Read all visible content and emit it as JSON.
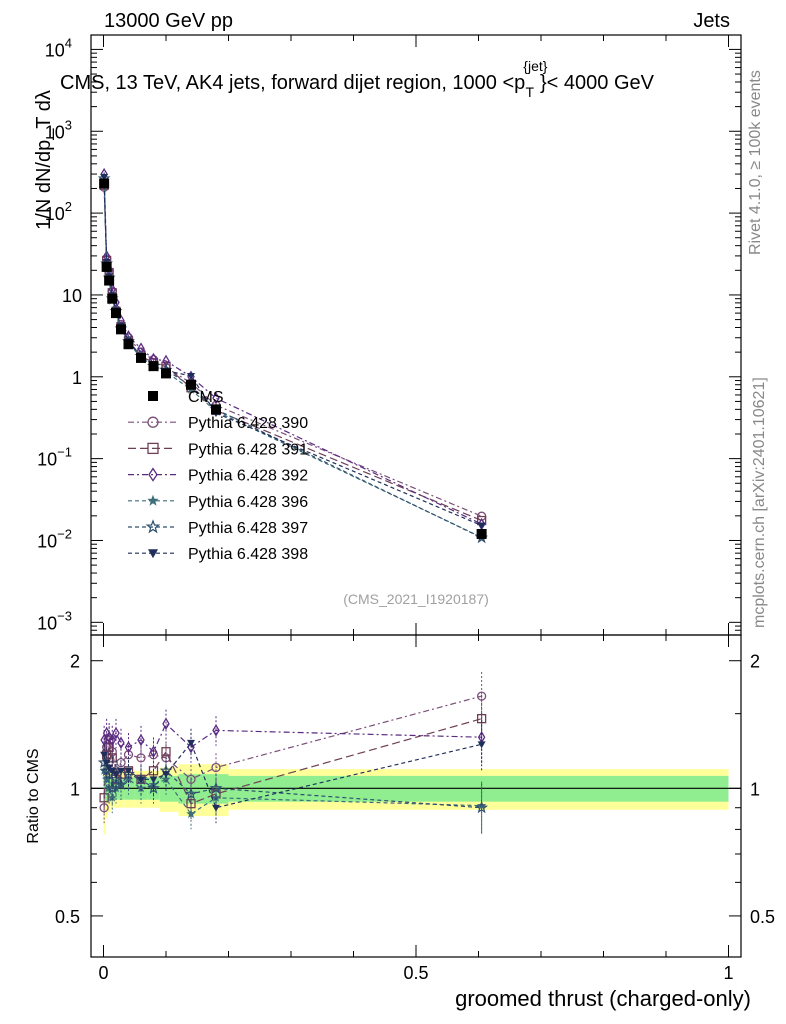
{
  "header": {
    "left": "13000 GeV pp",
    "right": "Jets"
  },
  "title_parts": {
    "main": "CMS, 13 TeV, AK4 jets, forward dijet region, 1000 <p",
    "sup": "{jet}",
    "sub": "T",
    "tail": "}< 4000 GeV"
  },
  "ylabel_upper": "1/N dN/dp_T dλ",
  "ylabel_lower": "Ratio to CMS",
  "xlabel": "groomed thrust (charged-only)",
  "watermark": "(CMS_2021_I1920187)",
  "side_text": {
    "rivet": "Rivet 4.1.0, ≥ 100k events",
    "mcplots": "mcplots.cern.ch [arXiv:2401.10621]"
  },
  "upper_ticks": [
    {
      "v": 0.001,
      "mant": "10",
      "exp": "−3"
    },
    {
      "v": 0.01,
      "mant": "10",
      "exp": "−2"
    },
    {
      "v": 0.1,
      "mant": "10",
      "exp": "−1"
    },
    {
      "v": 1,
      "mant": "1",
      "exp": ""
    },
    {
      "v": 10,
      "mant": "10",
      "exp": ""
    },
    {
      "v": 100,
      "mant": "10",
      "exp": "2"
    },
    {
      "v": 1000,
      "mant": "10",
      "exp": "3"
    },
    {
      "v": 10000,
      "mant": "10",
      "exp": "4"
    }
  ],
  "ratio_ticks": [
    "0.5",
    "1",
    "2"
  ],
  "x_ticks": [
    "0",
    "0.5",
    "1"
  ],
  "legend": [
    {
      "label": "CMS",
      "color": "#000000",
      "marker": "square-filled"
    },
    {
      "label": "Pythia 6.428 390",
      "color": "#7b4f7a",
      "marker": "circle-open"
    },
    {
      "label": "Pythia 6.428 391",
      "color": "#6e3f55",
      "marker": "square-open"
    },
    {
      "label": "Pythia 6.428 392",
      "color": "#5a2b82",
      "marker": "diamond-open"
    },
    {
      "label": "Pythia 6.428 396",
      "color": "#3d6e7a",
      "marker": "star-filled"
    },
    {
      "label": "Pythia 6.428 397",
      "color": "#2f4f6e",
      "marker": "star-open"
    },
    {
      "label": "Pythia 6.428 398",
      "color": "#1f2f5a",
      "marker": "triangle-down-filled"
    }
  ],
  "chart_data": {
    "type": "scatter",
    "title": "CMS, 13 TeV, AK4 jets, forward dijet region, 1000 < p_T^{jet} < 4000 GeV",
    "xlabel": "groomed thrust (charged-only)",
    "ylabel": "1/N dN/dp_T dλ",
    "xlim": [
      -0.02,
      1.02
    ],
    "ylim": [
      0.0007,
      15000
    ],
    "yscale": "log",
    "ratio_ylim": [
      0.4,
      2.3
    ],
    "x": [
      0.001,
      0.005,
      0.009,
      0.014,
      0.02,
      0.028,
      0.04,
      0.06,
      0.08,
      0.1,
      0.14,
      0.18,
      0.605
    ],
    "reference": {
      "name": "CMS",
      "values": [
        230,
        22,
        15,
        9,
        6,
        3.8,
        2.5,
        1.7,
        1.35,
        1.1,
        0.8,
        0.4,
        0.012
      ],
      "band_inner": [
        0.07,
        0.07,
        0.07,
        0.06,
        0.06,
        0.06,
        0.06,
        0.06,
        0.06,
        0.07,
        0.08,
        0.08,
        0.07
      ],
      "band_outer": [
        0.22,
        0.15,
        0.12,
        0.1,
        0.1,
        0.1,
        0.1,
        0.1,
        0.1,
        0.12,
        0.14,
        0.14,
        0.11
      ]
    },
    "series": [
      {
        "name": "Pythia 6.428 390",
        "ratio": [
          0.9,
          1.25,
          1.3,
          1.22,
          1.1,
          1.15,
          1.2,
          1.18,
          1.2,
          1.18,
          1.05,
          1.12,
          1.65
        ]
      },
      {
        "name": "Pythia 6.428 391",
        "ratio": [
          0.95,
          1.2,
          1.25,
          1.18,
          1.05,
          1.08,
          1.1,
          1.05,
          1.1,
          1.22,
          0.92,
          0.97,
          1.46
        ]
      },
      {
        "name": "Pythia 6.428 392",
        "ratio": [
          1.3,
          1.35,
          1.32,
          1.3,
          1.35,
          1.28,
          1.25,
          1.3,
          1.22,
          1.42,
          1.25,
          1.37,
          1.32
        ]
      },
      {
        "name": "Pythia 6.428 396",
        "ratio": [
          1.1,
          1.05,
          1.0,
          0.95,
          1.0,
          1.02,
          1.05,
          1.0,
          1.02,
          1.05,
          0.87,
          0.95,
          0.91
        ]
      },
      {
        "name": "Pythia 6.428 397",
        "ratio": [
          1.15,
          1.1,
          1.08,
          1.0,
          1.05,
          1.02,
          1.08,
          1.05,
          1.0,
          1.1,
          0.97,
          1.0,
          0.9
        ]
      },
      {
        "name": "Pythia 6.428 398",
        "ratio": [
          1.2,
          1.15,
          1.12,
          1.1,
          1.08,
          1.1,
          1.1,
          1.05,
          1.05,
          1.08,
          1.28,
          0.9,
          1.27
        ]
      }
    ]
  }
}
